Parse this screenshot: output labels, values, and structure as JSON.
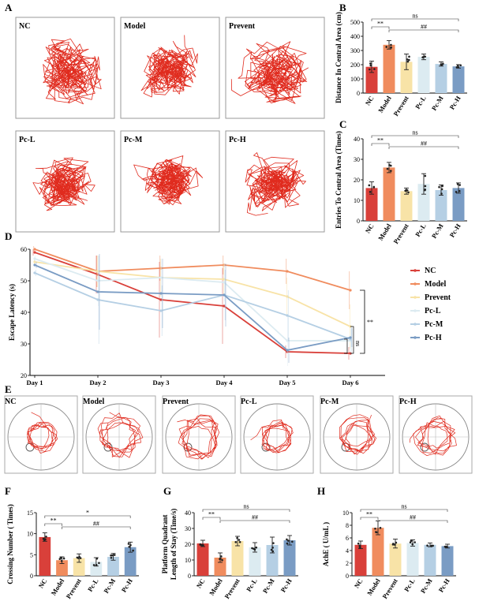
{
  "figure": {
    "panel_labels": {
      "A": "A",
      "B": "B",
      "C": "C",
      "D": "D",
      "E": "E",
      "F": "F",
      "G": "G",
      "H": "H"
    },
    "groups": [
      "NC",
      "Model",
      "Prevent",
      "Pc-L",
      "Pc-M",
      "Pc-H"
    ],
    "colors": {
      "NC": "#d9403a",
      "Model": "#f08c5e",
      "Prevent": "#f8e3a7",
      "Pc-L": "#dcebf1",
      "Pc-M": "#b5cfe4",
      "Pc-H": "#7a9cc4"
    },
    "track_color": "#e02b1e",
    "stat_marks": {
      "ns": "ns",
      "double_star": "**",
      "double_hash": "##",
      "single_star": "*"
    }
  },
  "chart_data": [
    {
      "id": "B",
      "type": "bar",
      "ylabel": "Distance In Central Area (cm)",
      "categories": [
        "NC",
        "Model",
        "Prevent",
        "Pc-L",
        "Pc-M",
        "Pc-H"
      ],
      "values": [
        185,
        340,
        220,
        255,
        205,
        188
      ],
      "errors": [
        40,
        30,
        55,
        20,
        15,
        12
      ],
      "ylim": [
        0,
        500
      ],
      "yticks": [
        "0",
        "100",
        "200",
        "300",
        "400",
        "500"
      ]
    },
    {
      "id": "C",
      "type": "bar",
      "ylabel": "Entries To Central Area (Times)",
      "categories": [
        "NC",
        "Model",
        "Prevent",
        "Pc-L",
        "Pc-M",
        "Pc-H"
      ],
      "values": [
        16,
        26,
        14.5,
        18,
        15,
        16
      ],
      "errors": [
        3,
        2.5,
        1.5,
        5,
        2.5,
        2.5
      ],
      "ylim": [
        0,
        40
      ],
      "yticks": [
        "0",
        "10",
        "20",
        "30",
        "40"
      ]
    },
    {
      "id": "D",
      "type": "line",
      "ylabel": "Escape Latency (s)",
      "x": [
        "Day 1",
        "Day 2",
        "Day 3",
        "Day 4",
        "Day 5",
        "Day 6"
      ],
      "ylim": [
        20,
        60
      ],
      "yticks": [
        "20",
        "30",
        "40",
        "50",
        "60"
      ],
      "series": [
        {
          "name": "NC",
          "values": [
            59,
            52,
            44,
            42,
            27.5,
            27
          ],
          "errors": [
            1,
            6,
            12,
            12,
            2,
            2
          ]
        },
        {
          "name": "Model",
          "values": [
            60,
            53,
            54,
            55,
            53,
            47
          ],
          "errors": [
            1,
            5,
            4,
            3,
            4,
            6
          ]
        },
        {
          "name": "Prevent",
          "values": [
            56,
            53,
            51,
            50.5,
            45,
            35.5
          ],
          "errors": [
            1,
            5,
            6,
            5,
            6,
            7
          ]
        },
        {
          "name": "Pc-L",
          "values": [
            57,
            50,
            51,
            49.5,
            31,
            31
          ],
          "errors": [
            1,
            8,
            6,
            6,
            8,
            4
          ]
        },
        {
          "name": "Pc-M",
          "values": [
            52.5,
            44,
            40.5,
            45.5,
            39,
            31.5
          ],
          "errors": [
            1,
            14,
            8,
            8,
            8,
            4
          ]
        },
        {
          "name": "Pc-H",
          "values": [
            55,
            46.5,
            46,
            45.5,
            28,
            32
          ],
          "errors": [
            1,
            12,
            11,
            10,
            4,
            3
          ]
        }
      ],
      "annotations": [
        "**",
        "ns"
      ]
    },
    {
      "id": "F",
      "type": "bar",
      "ylabel": "Crossing Number ( Times)",
      "categories": [
        "NC",
        "Model",
        "Prevent",
        "Pc-L",
        "Pc-M",
        "Pc-H"
      ],
      "values": [
        9.2,
        3.7,
        4.2,
        3.3,
        4.5,
        6.8
      ],
      "errors": [
        1,
        0.8,
        1,
        1,
        0.8,
        1.2
      ],
      "ylim": [
        0,
        15
      ],
      "yticks": [
        "0",
        "5",
        "10",
        "15"
      ]
    },
    {
      "id": "G",
      "type": "bar",
      "ylabel": "Platform Quadrant Length of Stay (Time/s)",
      "ylabel_lines": [
        "Platform Quadrant",
        "Length of Stay (Time/s)"
      ],
      "categories": [
        "NC",
        "Model",
        "Prevent",
        "Pc-L",
        "Pc-M",
        "Pc-H"
      ],
      "values": [
        20.5,
        11.5,
        22,
        18,
        19.5,
        22.5
      ],
      "errors": [
        2,
        3,
        3,
        3,
        5,
        3
      ],
      "ylim": [
        0,
        40
      ],
      "yticks": [
        "0",
        "10",
        "20",
        "30",
        "40"
      ]
    },
    {
      "id": "H",
      "type": "bar",
      "ylabel": "AchE ( U/mL )",
      "categories": [
        "NC",
        "Model",
        "Prevent",
        "Pc-L",
        "Pc-M",
        "Pc-H"
      ],
      "values": [
        4.9,
        7.6,
        5.1,
        5.2,
        4.9,
        4.7
      ],
      "errors": [
        0.6,
        1.1,
        0.7,
        0.5,
        0.3,
        0.3
      ],
      "ylim": [
        0,
        10
      ],
      "yticks": [
        "0",
        "2",
        "4",
        "6",
        "8",
        "10"
      ]
    }
  ]
}
